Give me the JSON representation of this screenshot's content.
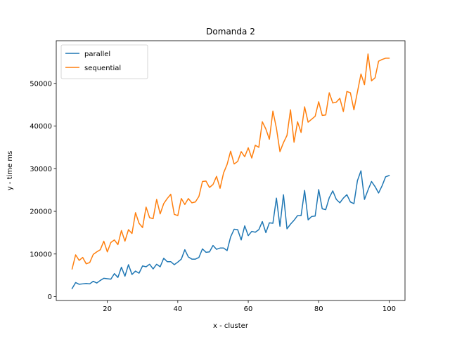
{
  "chart_data": {
    "type": "line",
    "title": "Domanda 2",
    "xlabel": "x - cluster",
    "ylabel": "y - time ms",
    "xlim": [
      5.5,
      104.5
    ],
    "ylim": [
      -900,
      60000
    ],
    "xticks": [
      20,
      40,
      60,
      80,
      100
    ],
    "yticks": [
      0,
      10000,
      20000,
      30000,
      40000,
      50000
    ],
    "grid": false,
    "legend_position": "top-left",
    "x": [
      10,
      11,
      12,
      13,
      14,
      15,
      16,
      17,
      18,
      19,
      20,
      21,
      22,
      23,
      24,
      25,
      26,
      27,
      28,
      29,
      30,
      31,
      32,
      33,
      34,
      35,
      36,
      37,
      38,
      39,
      40,
      41,
      42,
      43,
      44,
      45,
      46,
      47,
      48,
      49,
      50,
      51,
      52,
      53,
      54,
      55,
      56,
      57,
      58,
      59,
      60,
      61,
      62,
      63,
      64,
      65,
      66,
      67,
      68,
      69,
      70,
      71,
      72,
      73,
      74,
      75,
      76,
      77,
      78,
      79,
      80,
      81,
      82,
      83,
      84,
      85,
      86,
      87,
      88,
      89,
      90,
      91,
      92,
      93,
      94,
      95,
      96,
      97,
      98,
      99,
      100
    ],
    "series": [
      {
        "name": "parallel",
        "color": "#1f77b4",
        "values": [
          1900,
          3300,
          2900,
          3000,
          3100,
          3000,
          3600,
          3200,
          3800,
          4300,
          4200,
          4100,
          5400,
          4500,
          6900,
          4800,
          7500,
          5200,
          6000,
          5500,
          7200,
          7000,
          7600,
          6500,
          7600,
          7000,
          9000,
          8200,
          8200,
          7500,
          8100,
          8800,
          11000,
          9300,
          8800,
          8800,
          9200,
          11200,
          10400,
          10500,
          12000,
          11100,
          11400,
          11400,
          10800,
          14000,
          15800,
          15700,
          13300,
          16600,
          14300,
          15300,
          15100,
          15700,
          17600,
          15000,
          17300,
          17200,
          23100,
          16500,
          23900,
          15900,
          17000,
          17900,
          19000,
          19000,
          24900,
          18000,
          18800,
          18900,
          25100,
          20600,
          20400,
          23200,
          24800,
          22800,
          22000,
          23100,
          23900,
          22200,
          21800,
          27200,
          29500,
          22800,
          25000,
          27000,
          25800,
          24300,
          26000,
          28100,
          28400
        ]
      },
      {
        "name": "sequential",
        "color": "#ff7f0e",
        "values": [
          6500,
          9800,
          8500,
          9200,
          7700,
          8000,
          9900,
          10500,
          11000,
          13000,
          10500,
          12700,
          13300,
          12200,
          15500,
          13000,
          15700,
          14800,
          19700,
          17200,
          16200,
          21000,
          18500,
          18300,
          22800,
          19400,
          21800,
          23000,
          24000,
          19300,
          19000,
          23000,
          21600,
          23000,
          22000,
          22200,
          23500,
          27000,
          27100,
          25600,
          26300,
          28200,
          25400,
          29000,
          31000,
          34100,
          31100,
          31700,
          34000,
          32800,
          34900,
          32500,
          35500,
          35000,
          41000,
          39300,
          36900,
          43500,
          39500,
          34000,
          36100,
          37800,
          43800,
          36200,
          41000,
          38500,
          44500,
          40900,
          41600,
          42300,
          45700,
          42500,
          42600,
          47800,
          45400,
          45600,
          46500,
          43400,
          48100,
          47800,
          43800,
          48000,
          52200,
          49700,
          56900,
          50600,
          51300,
          55200,
          55600,
          55900,
          55900
        ]
      }
    ]
  }
}
